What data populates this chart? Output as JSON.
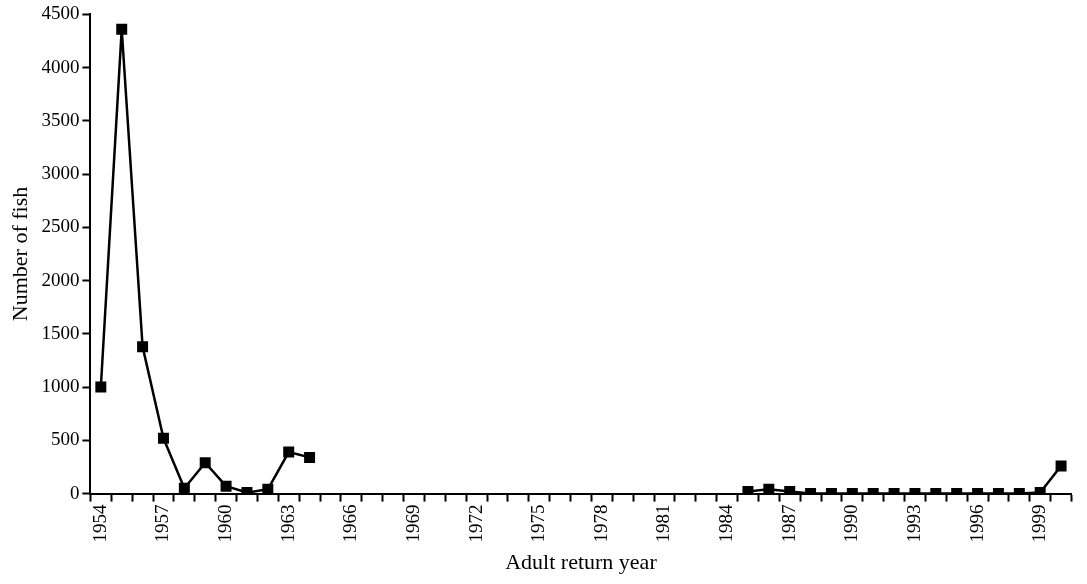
{
  "chart_data": {
    "type": "line",
    "xlabel": "Adult return year",
    "ylabel": "Number of fish",
    "categories": [
      "1954",
      null,
      null,
      "1957",
      null,
      null,
      "1960",
      null,
      null,
      "1963",
      null,
      null,
      "1966",
      null,
      null,
      "1969",
      null,
      null,
      "1972",
      null,
      null,
      "1975",
      null,
      null,
      "1978",
      null,
      null,
      "1981",
      null,
      null,
      "1984",
      null,
      null,
      "1987",
      null,
      null,
      "1990",
      null,
      null,
      "1993",
      null,
      null,
      "1996",
      null,
      null,
      "1999",
      null
    ],
    "series": [
      {
        "color": "#000000",
        "values": [
          1000,
          4360,
          1380,
          520,
          50,
          290,
          70,
          10,
          40,
          390,
          340,
          null,
          null,
          null,
          null,
          null,
          null,
          null,
          null,
          null,
          null,
          null,
          null,
          null,
          null,
          null,
          null,
          null,
          null,
          null,
          null,
          20,
          40,
          20,
          0,
          0,
          0,
          0,
          0,
          0,
          0,
          0,
          0,
          0,
          0,
          10,
          260
        ]
      }
    ],
    "ylim": [
      0,
      4500
    ],
    "yticks": [
      0,
      500,
      1000,
      1500,
      2000,
      2500,
      3000,
      3500,
      4000,
      4500
    ],
    "grid": false,
    "legend": false,
    "marker": "square",
    "line_style": "solid"
  }
}
